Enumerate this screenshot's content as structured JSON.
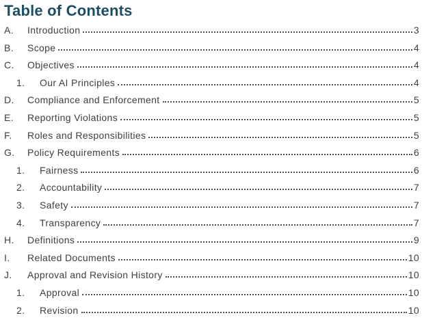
{
  "page": {
    "title": "Table of Contents",
    "title_color": "#1b4d63",
    "text_color": "#3e3e3e",
    "dot_leader_color": "#4b4b4b"
  },
  "toc": {
    "entries": [
      {
        "level": 1,
        "marker": "A.",
        "label": "Introduction",
        "page": "3"
      },
      {
        "level": 1,
        "marker": "B.",
        "label": "Scope",
        "page": "4"
      },
      {
        "level": 1,
        "marker": "C.",
        "label": "Objectives",
        "page": "4"
      },
      {
        "level": 2,
        "marker": "1.",
        "label": "Our AI Principles",
        "page": "4"
      },
      {
        "level": 1,
        "marker": "D.",
        "label": "Compliance and Enforcement",
        "page": "5"
      },
      {
        "level": 1,
        "marker": "E.",
        "label": "Reporting Violations",
        "page": "5"
      },
      {
        "level": 1,
        "marker": "F.",
        "label": "Roles and Responsibilities",
        "page": "5"
      },
      {
        "level": 1,
        "marker": "G.",
        "label": "Policy Requirements",
        "page": "6"
      },
      {
        "level": 2,
        "marker": "1.",
        "label": "Fairness",
        "page": "6"
      },
      {
        "level": 2,
        "marker": "2.",
        "label": "Accountability",
        "page": "7"
      },
      {
        "level": 2,
        "marker": "3.",
        "label": "Safety",
        "page": "7"
      },
      {
        "level": 2,
        "marker": "4.",
        "label": "Transparency",
        "page": "7"
      },
      {
        "level": 1,
        "marker": "H.",
        "label": "Definitions",
        "page": "9"
      },
      {
        "level": 1,
        "marker": "I.",
        "label": "Related Documents",
        "page": "10"
      },
      {
        "level": 1,
        "marker": "J.",
        "label": "Approval and Revision History",
        "page": "10"
      },
      {
        "level": 2,
        "marker": "1.",
        "label": "Approval",
        "page": "10"
      },
      {
        "level": 2,
        "marker": "2.",
        "label": "Revision",
        "page": "10"
      }
    ]
  }
}
